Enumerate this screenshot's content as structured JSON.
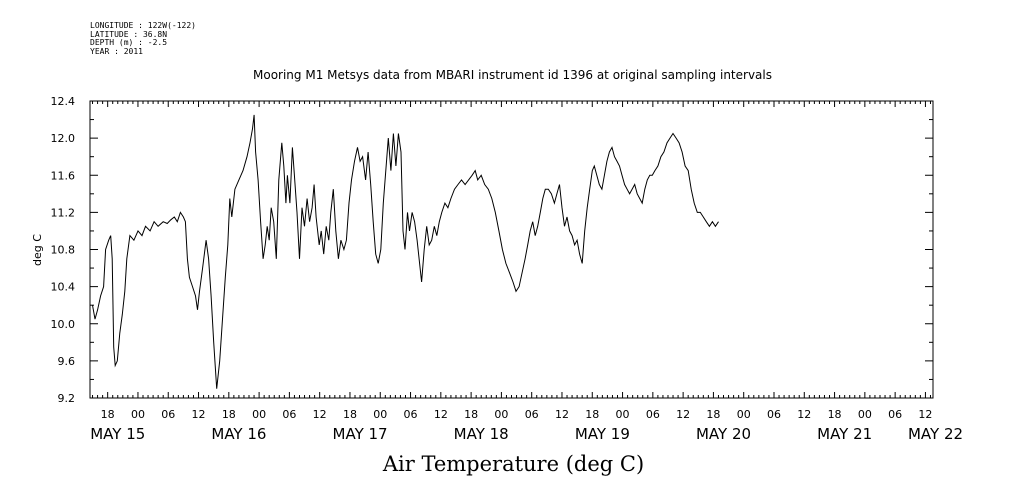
{
  "header_meta": [
    "LONGITUDE : 122W(-122)",
    "LATITUDE : 36.8N",
    "DEPTH (m) : -2.5",
    "YEAR : 2011"
  ],
  "chart_data": {
    "type": "line",
    "title": "Mooring M1 Metsys data from MBARI instrument id 1396 at original sampling intervals",
    "xlabel": "Air Temperature (deg C)",
    "ylabel": "deg C",
    "ylim": [
      9.2,
      12.4
    ],
    "yticks": [
      "9.2",
      "9.6",
      "10.0",
      "10.4",
      "10.8",
      "11.2",
      "11.6",
      "12.0",
      "12.4"
    ],
    "ytick_values": [
      9.2,
      9.6,
      10.0,
      10.4,
      10.8,
      11.2,
      11.6,
      12.0,
      12.4
    ],
    "x_unit": "hours since May 15 00:00 (2011)",
    "xlim": [
      14.5,
      181.5
    ],
    "hour_ticks": [
      {
        "h": 18,
        "label": "18"
      },
      {
        "h": 24,
        "label": "00"
      },
      {
        "h": 30,
        "label": "06"
      },
      {
        "h": 36,
        "label": "12"
      },
      {
        "h": 42,
        "label": "18"
      },
      {
        "h": 48,
        "label": "00"
      },
      {
        "h": 54,
        "label": "06"
      },
      {
        "h": 60,
        "label": "12"
      },
      {
        "h": 66,
        "label": "18"
      },
      {
        "h": 72,
        "label": "00"
      },
      {
        "h": 78,
        "label": "06"
      },
      {
        "h": 84,
        "label": "12"
      },
      {
        "h": 90,
        "label": "18"
      },
      {
        "h": 96,
        "label": "00"
      },
      {
        "h": 102,
        "label": "06"
      },
      {
        "h": 108,
        "label": "12"
      },
      {
        "h": 114,
        "label": "18"
      },
      {
        "h": 120,
        "label": "00"
      },
      {
        "h": 126,
        "label": "06"
      },
      {
        "h": 132,
        "label": "12"
      },
      {
        "h": 138,
        "label": "18"
      },
      {
        "h": 144,
        "label": "00"
      },
      {
        "h": 150,
        "label": "06"
      },
      {
        "h": 156,
        "label": "12"
      },
      {
        "h": 162,
        "label": "18"
      },
      {
        "h": 168,
        "label": "00"
      },
      {
        "h": 174,
        "label": "06"
      },
      {
        "h": 180,
        "label": "12"
      }
    ],
    "day_labels": [
      {
        "h": 20,
        "label": "MAY 15"
      },
      {
        "h": 44,
        "label": "MAY 16"
      },
      {
        "h": 68,
        "label": "MAY 17"
      },
      {
        "h": 92,
        "label": "MAY 18"
      },
      {
        "h": 116,
        "label": "MAY 19"
      },
      {
        "h": 140,
        "label": "MAY 20"
      },
      {
        "h": 164,
        "label": "MAY 21"
      },
      {
        "h": 182,
        "label": "MAY 22"
      }
    ],
    "series": [
      {
        "points": [
          [
            15.0,
            10.2
          ],
          [
            15.5,
            10.05
          ],
          [
            16.0,
            10.15
          ],
          [
            16.6,
            10.3
          ],
          [
            17.2,
            10.4
          ],
          [
            17.6,
            10.8
          ],
          [
            18.2,
            10.9
          ],
          [
            18.6,
            10.95
          ],
          [
            18.9,
            10.7
          ],
          [
            19.2,
            9.75
          ],
          [
            19.5,
            9.55
          ],
          [
            19.9,
            9.6
          ],
          [
            20.4,
            9.9
          ],
          [
            20.9,
            10.1
          ],
          [
            21.4,
            10.35
          ],
          [
            21.8,
            10.7
          ],
          [
            22.4,
            10.95
          ],
          [
            23.2,
            10.9
          ],
          [
            24.0,
            11.0
          ],
          [
            24.8,
            10.95
          ],
          [
            25.5,
            11.05
          ],
          [
            26.4,
            11.0
          ],
          [
            27.2,
            11.1
          ],
          [
            28.0,
            11.05
          ],
          [
            29.0,
            11.1
          ],
          [
            29.8,
            11.08
          ],
          [
            30.5,
            11.12
          ],
          [
            31.2,
            11.15
          ],
          [
            31.8,
            11.1
          ],
          [
            32.4,
            11.2
          ],
          [
            33.0,
            11.15
          ],
          [
            33.4,
            11.1
          ],
          [
            33.8,
            10.7
          ],
          [
            34.2,
            10.5
          ],
          [
            34.8,
            10.4
          ],
          [
            35.4,
            10.3
          ],
          [
            35.8,
            10.15
          ],
          [
            36.2,
            10.35
          ],
          [
            36.8,
            10.6
          ],
          [
            37.5,
            10.9
          ],
          [
            38.0,
            10.7
          ],
          [
            38.5,
            10.3
          ],
          [
            39.0,
            9.8
          ],
          [
            39.6,
            9.3
          ],
          [
            40.2,
            9.6
          ],
          [
            40.8,
            10.1
          ],
          [
            41.3,
            10.5
          ],
          [
            41.8,
            10.85
          ],
          [
            42.2,
            11.35
          ],
          [
            42.6,
            11.15
          ],
          [
            43.2,
            11.45
          ],
          [
            44.0,
            11.55
          ],
          [
            44.8,
            11.65
          ],
          [
            45.6,
            11.8
          ],
          [
            46.2,
            11.95
          ],
          [
            46.7,
            12.1
          ],
          [
            47.0,
            12.25
          ],
          [
            47.3,
            11.85
          ],
          [
            47.8,
            11.55
          ],
          [
            48.3,
            11.1
          ],
          [
            48.8,
            10.7
          ],
          [
            49.2,
            10.85
          ],
          [
            49.6,
            11.05
          ],
          [
            50.0,
            10.9
          ],
          [
            50.4,
            11.25
          ],
          [
            50.9,
            11.1
          ],
          [
            51.4,
            10.7
          ],
          [
            51.9,
            11.55
          ],
          [
            52.5,
            11.95
          ],
          [
            52.9,
            11.7
          ],
          [
            53.3,
            11.3
          ],
          [
            53.6,
            11.6
          ],
          [
            54.1,
            11.3
          ],
          [
            54.6,
            11.9
          ],
          [
            55.0,
            11.6
          ],
          [
            55.5,
            11.2
          ],
          [
            56.0,
            10.7
          ],
          [
            56.5,
            11.25
          ],
          [
            57.0,
            11.05
          ],
          [
            57.5,
            11.35
          ],
          [
            58.0,
            11.1
          ],
          [
            58.5,
            11.25
          ],
          [
            58.9,
            11.5
          ],
          [
            59.3,
            11.15
          ],
          [
            59.9,
            10.85
          ],
          [
            60.3,
            11.0
          ],
          [
            60.8,
            10.75
          ],
          [
            61.3,
            11.05
          ],
          [
            61.8,
            10.9
          ],
          [
            62.2,
            11.2
          ],
          [
            62.7,
            11.45
          ],
          [
            63.2,
            11.0
          ],
          [
            63.7,
            10.7
          ],
          [
            64.2,
            10.9
          ],
          [
            64.8,
            10.8
          ],
          [
            65.3,
            10.9
          ],
          [
            65.8,
            11.3
          ],
          [
            66.3,
            11.55
          ],
          [
            66.9,
            11.75
          ],
          [
            67.5,
            11.9
          ],
          [
            68.0,
            11.75
          ],
          [
            68.5,
            11.8
          ],
          [
            69.1,
            11.55
          ],
          [
            69.6,
            11.85
          ],
          [
            70.1,
            11.5
          ],
          [
            70.6,
            11.1
          ],
          [
            71.1,
            10.75
          ],
          [
            71.6,
            10.65
          ],
          [
            72.1,
            10.8
          ],
          [
            72.6,
            11.3
          ],
          [
            73.1,
            11.65
          ],
          [
            73.6,
            12.0
          ],
          [
            74.1,
            11.65
          ],
          [
            74.6,
            12.05
          ],
          [
            75.1,
            11.7
          ],
          [
            75.6,
            12.05
          ],
          [
            76.1,
            11.85
          ],
          [
            76.5,
            11.0
          ],
          [
            76.9,
            10.8
          ],
          [
            77.4,
            11.2
          ],
          [
            77.8,
            11.0
          ],
          [
            78.3,
            11.2
          ],
          [
            78.8,
            11.1
          ],
          [
            79.3,
            10.9
          ],
          [
            79.8,
            10.65
          ],
          [
            80.2,
            10.45
          ],
          [
            80.7,
            10.8
          ],
          [
            81.2,
            11.05
          ],
          [
            81.7,
            10.85
          ],
          [
            82.2,
            10.9
          ],
          [
            82.7,
            11.05
          ],
          [
            83.2,
            10.95
          ],
          [
            83.7,
            11.1
          ],
          [
            84.2,
            11.2
          ],
          [
            84.8,
            11.3
          ],
          [
            85.4,
            11.25
          ],
          [
            86.0,
            11.35
          ],
          [
            86.7,
            11.45
          ],
          [
            87.4,
            11.5
          ],
          [
            88.1,
            11.55
          ],
          [
            88.8,
            11.5
          ],
          [
            89.5,
            11.55
          ],
          [
            90.2,
            11.6
          ],
          [
            90.8,
            11.65
          ],
          [
            91.3,
            11.55
          ],
          [
            92.0,
            11.6
          ],
          [
            92.7,
            11.5
          ],
          [
            93.4,
            11.45
          ],
          [
            94.1,
            11.35
          ],
          [
            94.8,
            11.2
          ],
          [
            95.5,
            11.0
          ],
          [
            96.2,
            10.8
          ],
          [
            96.9,
            10.65
          ],
          [
            97.6,
            10.55
          ],
          [
            98.3,
            10.45
          ],
          [
            98.9,
            10.35
          ],
          [
            99.5,
            10.4
          ],
          [
            100.1,
            10.55
          ],
          [
            100.7,
            10.7
          ],
          [
            101.2,
            10.85
          ],
          [
            101.7,
            11.0
          ],
          [
            102.2,
            11.1
          ],
          [
            102.7,
            10.95
          ],
          [
            103.2,
            11.05
          ],
          [
            103.7,
            11.2
          ],
          [
            104.2,
            11.35
          ],
          [
            104.7,
            11.45
          ],
          [
            105.3,
            11.45
          ],
          [
            105.9,
            11.4
          ],
          [
            106.5,
            11.3
          ],
          [
            107.0,
            11.4
          ],
          [
            107.5,
            11.5
          ],
          [
            108.0,
            11.25
          ],
          [
            108.5,
            11.05
          ],
          [
            109.0,
            11.15
          ],
          [
            109.5,
            11.0
          ],
          [
            110.0,
            10.95
          ],
          [
            110.5,
            10.85
          ],
          [
            111.0,
            10.9
          ],
          [
            111.5,
            10.75
          ],
          [
            112.0,
            10.65
          ],
          [
            112.5,
            11.0
          ],
          [
            113.0,
            11.25
          ],
          [
            113.5,
            11.45
          ],
          [
            114.0,
            11.65
          ],
          [
            114.4,
            11.7
          ],
          [
            114.9,
            11.6
          ],
          [
            115.4,
            11.5
          ],
          [
            115.9,
            11.45
          ],
          [
            116.4,
            11.6
          ],
          [
            116.9,
            11.75
          ],
          [
            117.4,
            11.85
          ],
          [
            117.9,
            11.9
          ],
          [
            118.4,
            11.8
          ],
          [
            118.9,
            11.75
          ],
          [
            119.4,
            11.7
          ],
          [
            119.9,
            11.6
          ],
          [
            120.4,
            11.5
          ],
          [
            120.9,
            11.45
          ],
          [
            121.4,
            11.4
          ],
          [
            121.9,
            11.45
          ],
          [
            122.4,
            11.5
          ],
          [
            122.9,
            11.4
          ],
          [
            123.4,
            11.35
          ],
          [
            123.9,
            11.3
          ],
          [
            124.4,
            11.45
          ],
          [
            124.9,
            11.55
          ],
          [
            125.4,
            11.6
          ],
          [
            125.9,
            11.6
          ],
          [
            126.4,
            11.65
          ],
          [
            127.0,
            11.7
          ],
          [
            127.6,
            11.8
          ],
          [
            128.2,
            11.85
          ],
          [
            128.8,
            11.95
          ],
          [
            129.4,
            12.0
          ],
          [
            130.0,
            12.05
          ],
          [
            130.6,
            12.0
          ],
          [
            131.2,
            11.95
          ],
          [
            131.8,
            11.85
          ],
          [
            132.4,
            11.7
          ],
          [
            133.0,
            11.65
          ],
          [
            133.6,
            11.45
          ],
          [
            134.2,
            11.3
          ],
          [
            134.8,
            11.2
          ],
          [
            135.4,
            11.2
          ],
          [
            136.0,
            11.15
          ],
          [
            136.6,
            11.1
          ],
          [
            137.2,
            11.05
          ],
          [
            137.8,
            11.1
          ],
          [
            138.4,
            11.05
          ],
          [
            139.0,
            11.1
          ]
        ]
      }
    ],
    "line_color": "#000000"
  }
}
